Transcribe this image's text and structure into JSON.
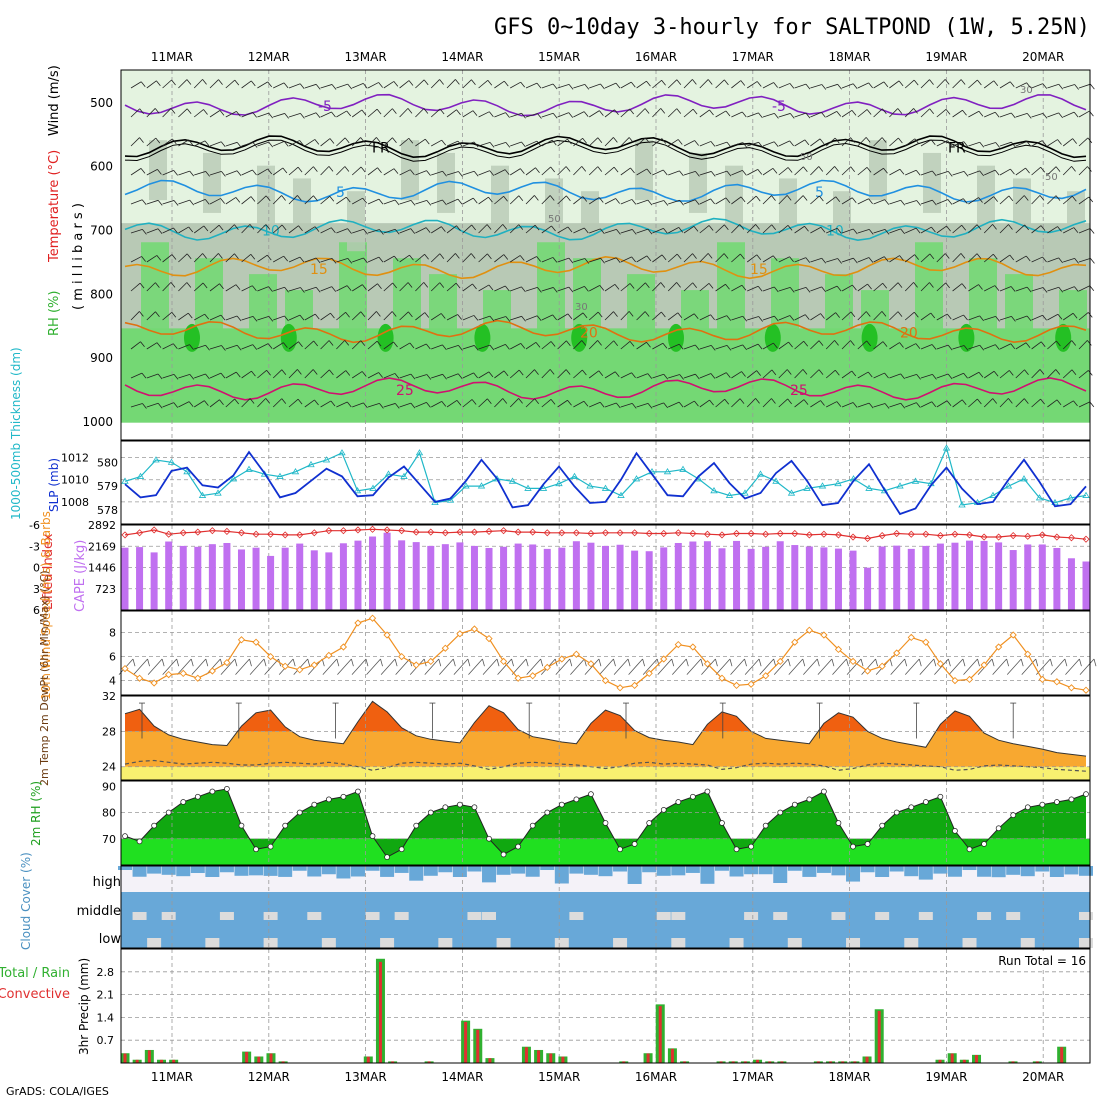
{
  "page": {
    "title": "GFS 0~10day 3-hourly for SALTPOND (1W, 5.25N)",
    "footer": "GrADS: COLA/IGES",
    "run_total": "Run Total = 16"
  },
  "colors": {
    "rh_light": "#e4f3e0",
    "rh_mid": "#b8c9b5",
    "rh_green": "#74d874",
    "rh_dark": "#24c024",
    "slp": "#1030d0",
    "thickness": "#20b8c8",
    "cape": "#c070f0",
    "lifted": "#e03030",
    "wind10m": "#f09020",
    "temp_dark": "#f06010",
    "temp_mid": "#f8a830",
    "temp_dew": "#f8f070",
    "rh2m_dark": "#10a810",
    "rh2m_light": "#20e020",
    "cloud": "#68a8d8",
    "cloud_gap": "#dcdcdc",
    "precip_total": "#30b030",
    "precip_conv": "#e03030"
  },
  "chart_data": [
    {
      "type": "area",
      "name": "vertical cross-section",
      "xlabel": "date",
      "categories": [
        "11MAR",
        "12MAR",
        "13MAR",
        "14MAR",
        "15MAR",
        "16MAR",
        "17MAR",
        "18MAR",
        "19MAR",
        "20MAR"
      ],
      "ylabel": "millibars",
      "y_ticks": [
        "500",
        "600",
        "700",
        "800",
        "900",
        "1000"
      ],
      "ylim": [
        450,
        1030
      ],
      "axis_text": [
        "Wind (m/s)",
        "Temperature (°C)",
        "RH (%)",
        "( m i l l i b a r s )"
      ],
      "isotherms": [
        {
          "label": "-5",
          "level": 505,
          "color": "#8020c0"
        },
        {
          "label": "FR",
          "level": 570,
          "color": "#000000"
        },
        {
          "label": "5",
          "level": 640,
          "color": "#2090e0"
        },
        {
          "label": "10",
          "level": 700,
          "color": "#20b0c0"
        },
        {
          "label": "15",
          "level": 760,
          "color": "#e09010"
        },
        {
          "label": "20",
          "level": 860,
          "color": "#e07010"
        },
        {
          "label": "25",
          "level": 950,
          "color": "#d01070"
        }
      ],
      "contour_labels": [
        "30",
        "50",
        "50",
        "50",
        "30"
      ]
    },
    {
      "type": "line",
      "name": "SLP and thickness",
      "ylabel_left": "1000-500mb Thickness (dm)",
      "ylabel_right": "SLP (mb)",
      "left_ticks": [
        "580",
        "579",
        "578"
      ],
      "right_ticks": [
        "1012",
        "1010",
        "1008"
      ],
      "ylim_slp": [
        1006,
        1013.5
      ],
      "ylim_thk": [
        577.4,
        580.9
      ],
      "series": [
        {
          "name": "SLP (mb)",
          "values": [
            1009.6,
            1008.4,
            1008.6,
            1010.8,
            1011.1,
            1009.5,
            1009.3,
            1010.4,
            1012.5,
            1010.6,
            1008.4,
            1008.8,
            1009.9,
            1011.0,
            1010.3,
            1008.5,
            1008.6,
            1010.2,
            1011.2,
            1009.6,
            1008.0,
            1008.3,
            1009.9,
            1011.8,
            1010.1,
            1007.5,
            1007.7,
            1009.6,
            1011.2,
            1009.4,
            1007.9,
            1008.0,
            1010.0,
            1012.4,
            1010.5,
            1008.6,
            1008.5,
            1010.3,
            1011.5,
            1009.7,
            1008.3,
            1008.8,
            1010.6,
            1011.7,
            1009.9,
            1007.7,
            1007.9,
            1009.9,
            1011.4,
            1009.1,
            1006.9,
            1007.4,
            1009.5,
            1011.1,
            1009.2,
            1007.8,
            1008.0,
            1010.0,
            1011.8,
            1009.8,
            1007.6,
            1007.8,
            1009.4
          ]
        },
        {
          "name": "Thickness (dm)",
          "values": [
            579.2,
            579.4,
            580.1,
            580.0,
            579.6,
            578.6,
            578.7,
            579.3,
            579.7,
            579.5,
            579.4,
            579.6,
            579.9,
            580.1,
            580.4,
            578.8,
            578.9,
            579.5,
            579.4,
            580.4,
            578.3,
            578.4,
            579.0,
            579.0,
            579.3,
            579.2,
            578.9,
            578.9,
            579.1,
            579.4,
            579.0,
            578.9,
            578.6,
            579.3,
            579.6,
            579.6,
            579.7,
            579.3,
            578.8,
            578.6,
            578.7,
            579.5,
            579.2,
            578.7,
            578.9,
            579.0,
            579.1,
            579.3,
            578.9,
            578.8,
            579.0,
            579.2,
            579.1,
            580.6,
            578.2,
            578.3,
            578.6,
            579.0,
            579.3,
            578.5,
            578.3,
            578.5,
            578.6
          ]
        }
      ]
    },
    {
      "type": "bar",
      "name": "CAPE and Lifted Index",
      "ylabel_left": "Lifted Index",
      "ylabel_right": "CAPE (J/kg)",
      "left_ticks": [
        "-6",
        "-3",
        "0",
        "3",
        "6"
      ],
      "right_ticks": [
        "2892",
        "2169",
        "1446",
        "723"
      ],
      "ylim_cape": [
        0,
        2892
      ],
      "ylim_li": [
        -6,
        6
      ],
      "series": [
        {
          "name": "CAPE (J/kg)",
          "values": [
            2120,
            2140,
            1960,
            2330,
            2180,
            2150,
            2240,
            2280,
            2060,
            2120,
            1840,
            2120,
            2260,
            2030,
            1960,
            2270,
            2360,
            2500,
            2630,
            2370,
            2310,
            2180,
            2240,
            2300,
            2180,
            2110,
            2150,
            2260,
            2230,
            2080,
            2120,
            2340,
            2290,
            2180,
            2220,
            2020,
            2000,
            2130,
            2280,
            2330,
            2340,
            2100,
            2350,
            2080,
            2150,
            2340,
            2210,
            2160,
            2130,
            2090,
            2020,
            1440,
            2160,
            2190,
            2080,
            2180,
            2260,
            2290,
            2360,
            2350,
            2300,
            2040,
            2230,
            2230,
            2110,
            1760,
            1650
          ]
        },
        {
          "name": "Lifted Index",
          "values": [
            -4.6,
            -4.9,
            -5.3,
            -4.7,
            -4.9,
            -5.0,
            -5.2,
            -5.1,
            -4.9,
            -4.7,
            -4.7,
            -4.6,
            -4.6,
            -4.9,
            -5.2,
            -5.2,
            -5.3,
            -5.4,
            -5.3,
            -5.2,
            -5.0,
            -5.0,
            -4.9,
            -5.0,
            -5.0,
            -5.1,
            -5.2,
            -5.0,
            -5.0,
            -4.9,
            -4.9,
            -4.9,
            -4.8,
            -4.9,
            -4.9,
            -4.9,
            -4.8,
            -4.8,
            -4.9,
            -4.8,
            -4.7,
            -4.6,
            -4.8,
            -4.8,
            -4.7,
            -4.8,
            -4.8,
            -4.6,
            -4.7,
            -4.6,
            -4.3,
            -4.1,
            -4.5,
            -4.8,
            -4.7,
            -4.7,
            -4.5,
            -4.7,
            -4.6,
            -4.3,
            -4.3,
            -4.5,
            -4.4,
            -4.6,
            -4.3,
            -4.2,
            -4.0
          ]
        }
      ]
    },
    {
      "type": "line",
      "name": "10m wind",
      "ylabel": "10m Wind Speed (m/s) & Barbs",
      "y_ticks": [
        "8",
        "6",
        "4"
      ],
      "ylim": [
        2.8,
        9.8
      ],
      "series": [
        {
          "name": "10m wind speed (m/s)",
          "values": [
            5.0,
            4.2,
            3.8,
            4.5,
            4.6,
            4.2,
            4.8,
            5.5,
            7.4,
            7.2,
            6.0,
            5.2,
            4.9,
            5.3,
            6.1,
            6.8,
            8.8,
            9.2,
            7.8,
            6.0,
            5.3,
            5.6,
            6.7,
            7.9,
            8.3,
            7.5,
            5.6,
            4.2,
            4.4,
            5.1,
            5.8,
            6.2,
            5.4,
            4.0,
            3.4,
            3.6,
            4.6,
            5.8,
            7.0,
            6.8,
            5.4,
            4.2,
            3.6,
            3.7,
            4.4,
            5.6,
            7.2,
            8.2,
            7.8,
            6.6,
            5.6,
            4.8,
            5.2,
            6.3,
            7.6,
            7.2,
            5.4,
            4.0,
            4.1,
            5.3,
            6.8,
            7.8,
            6.2,
            4.1,
            3.9,
            3.4,
            3.2
          ]
        }
      ]
    },
    {
      "type": "area",
      "name": "2m temperature and dewpoint",
      "ylabel": "2m Temp 2m DewPt (6hr Min/Max) (°C)",
      "y_ticks": [
        "32",
        "28",
        "24"
      ],
      "ylim": [
        22.5,
        32
      ],
      "series": [
        {
          "name": "2m temperature (°C)",
          "values": [
            30.0,
            30.5,
            28.6,
            27.6,
            27.1,
            26.8,
            26.5,
            26.4,
            28.6,
            30.1,
            30.4,
            28.5,
            27.4,
            27.0,
            26.8,
            26.6,
            29.1,
            31.4,
            30.2,
            28.4,
            27.5,
            27.1,
            26.9,
            26.7,
            29.0,
            30.9,
            30.1,
            28.2,
            27.4,
            27.1,
            26.8,
            26.6,
            28.9,
            30.4,
            29.8,
            28.1,
            27.3,
            27.0,
            26.8,
            26.5,
            28.8,
            30.2,
            29.7,
            28.0,
            27.2,
            27.0,
            26.8,
            26.6,
            28.9,
            30.1,
            29.6,
            28.0,
            27.2,
            26.8,
            26.5,
            26.2,
            28.8,
            30.3,
            29.7,
            27.8,
            27.0,
            26.6,
            26.3,
            26.0,
            25.6,
            25.4,
            25.2
          ]
        },
        {
          "name": "2m dewpoint (°C)",
          "values": [
            24.3,
            24.6,
            24.7,
            24.5,
            24.3,
            24.4,
            24.5,
            24.4,
            24.2,
            24.2,
            24.4,
            24.5,
            24.4,
            24.3,
            24.5,
            24.3,
            24.0,
            23.6,
            23.9,
            24.4,
            24.5,
            24.4,
            24.3,
            24.4,
            24.1,
            23.7,
            24.0,
            24.4,
            24.5,
            24.4,
            24.3,
            24.2,
            24.0,
            23.8,
            24.0,
            24.4,
            24.5,
            24.3,
            24.4,
            24.3,
            24.2,
            23.7,
            23.9,
            24.3,
            24.4,
            24.3,
            24.4,
            24.3,
            24.1,
            23.6,
            23.8,
            24.2,
            24.4,
            24.3,
            24.2,
            24.1,
            24.0,
            23.6,
            23.7,
            24.1,
            24.2,
            24.1,
            24.0,
            23.9,
            23.7,
            23.6,
            23.5
          ]
        }
      ]
    },
    {
      "type": "area",
      "name": "2m relative humidity",
      "ylabel": "2m RH (%)",
      "y_ticks": [
        "90",
        "80",
        "70"
      ],
      "ylim": [
        60,
        92
      ],
      "series": [
        {
          "name": "2m RH (%)",
          "values": [
            71,
            69,
            75,
            80,
            84,
            86,
            88,
            89,
            75,
            66,
            67,
            75,
            80,
            83,
            85,
            86,
            88,
            71,
            63,
            66,
            75,
            80,
            82,
            83,
            82,
            70,
            64,
            67,
            75,
            80,
            83,
            85,
            87,
            76,
            66,
            68,
            76,
            81,
            84,
            86,
            88,
            76,
            66,
            67,
            75,
            80,
            83,
            85,
            88,
            76,
            67,
            68,
            75,
            80,
            82,
            84,
            86,
            73,
            66,
            68,
            74,
            79,
            82,
            83,
            84,
            85,
            87
          ]
        }
      ]
    },
    {
      "type": "bar",
      "name": "cloud cover",
      "ylabel": "Cloud Cover (%)",
      "rows": [
        "high",
        "middle",
        "low"
      ]
    },
    {
      "type": "bar",
      "name": "3hr precipitation",
      "ylabel": "3hr Precip (mm)",
      "legend": [
        "Total / Rain",
        "Convective"
      ],
      "y_ticks": [
        "2.8",
        "2.1",
        "1.4",
        "0.7"
      ],
      "ylim": [
        0,
        3.5
      ],
      "series": [
        {
          "name": "Total (mm)",
          "values": [
            0.3,
            0.1,
            0.4,
            0.1,
            0.1,
            0,
            0,
            0,
            0,
            0,
            0.35,
            0.2,
            0.3,
            0.05,
            0,
            0,
            0,
            0,
            0,
            0,
            0.2,
            3.2,
            0.05,
            0,
            0,
            0.05,
            0,
            0,
            1.3,
            1.05,
            0.15,
            0,
            0,
            0.5,
            0.4,
            0.3,
            0.2,
            0,
            0,
            0,
            0,
            0.05,
            0,
            0.3,
            1.8,
            0.45,
            0.05,
            0,
            0,
            0.05,
            0.05,
            0.05,
            0.1,
            0.05,
            0.05,
            0,
            0,
            0.05,
            0.05,
            0.05,
            0.05,
            0.2,
            1.65,
            0,
            0,
            0,
            0,
            0.1,
            0.3,
            0.1,
            0.25,
            0,
            0,
            0.05,
            0,
            0.05,
            0,
            0.5,
            0,
            0
          ]
        }
      ]
    }
  ]
}
